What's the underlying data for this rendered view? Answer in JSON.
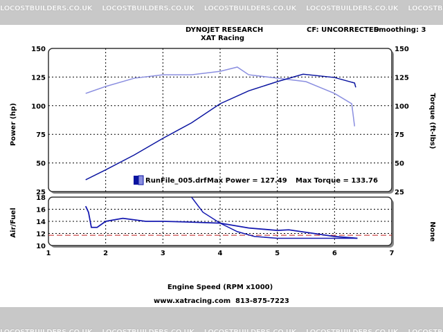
{
  "watermark": "LOCOSTBUILDERS.CO.UK",
  "header": {
    "title": "DYNOJET RESEARCH",
    "subtitle": "XAT Racing",
    "cf": "CF: UNCORRECTED",
    "smoothing": "Smoothing: 3"
  },
  "footer": {
    "website": "www.xatracing.com",
    "phone": "813-875-7223"
  },
  "colors": {
    "power": "#0a14a0",
    "torque": "#8a8ee0",
    "afr": "#1418b0",
    "reference": "#c02020"
  },
  "chart_data": [
    {
      "type": "line",
      "xlabel": "Engine Speed (RPM x1000)",
      "ylabel": "Power (hp)",
      "y2label": "Torque (ft-lbs)",
      "xlim": [
        1,
        7
      ],
      "ylim": [
        25,
        150
      ],
      "xticks": [
        "1",
        "2",
        "3",
        "4",
        "5",
        "6",
        "7"
      ],
      "yticks": [
        "25",
        "50",
        "75",
        "100",
        "125",
        "150"
      ],
      "grid": true,
      "legend": {
        "file": "RunFile_005.drf",
        "max_power": "Max Power = 127.49",
        "max_torque": "Max Torque = 133.76"
      },
      "series": [
        {
          "name": "Power",
          "x": [
            1.65,
            2.0,
            2.5,
            3.0,
            3.5,
            4.0,
            4.5,
            5.0,
            5.45,
            6.0,
            6.35,
            6.37
          ],
          "y": [
            35.3,
            44,
            57,
            71.5,
            85,
            101.7,
            113,
            121,
            127.5,
            124.6,
            119.8,
            116
          ]
        },
        {
          "name": "Torque",
          "x": [
            1.65,
            2.0,
            2.5,
            3.0,
            3.5,
            4.0,
            4.3,
            4.5,
            5.0,
            5.5,
            6.0,
            6.3,
            6.35
          ],
          "y": [
            110.7,
            116.8,
            124,
            127,
            127,
            130,
            133.7,
            127,
            124,
            121,
            110.7,
            101.7,
            82
          ]
        }
      ]
    },
    {
      "type": "line",
      "ylabel": "Air/Fuel",
      "y2label": "None",
      "xlim": [
        1,
        7
      ],
      "ylim": [
        10,
        18
      ],
      "yticks": [
        "10",
        "12",
        "14",
        "16",
        "18"
      ],
      "grid": true,
      "reference": 11.7,
      "series": [
        {
          "x": [
            1.65,
            1.7,
            1.75,
            1.85,
            2.0,
            2.3,
            2.7,
            3.0,
            3.4,
            4.0,
            4.5,
            5.0,
            5.2,
            6.0,
            6.4
          ],
          "y": [
            16.5,
            15.5,
            13.0,
            13.0,
            14.0,
            14.5,
            14.0,
            14.0,
            13.9,
            13.7,
            12.9,
            12.5,
            12.6,
            11.5,
            11.2
          ]
        },
        {
          "x": [
            3.5,
            3.7,
            4.0,
            4.3,
            4.6,
            5.0,
            6.4
          ],
          "y": [
            18,
            15.5,
            13.7,
            12.3,
            11.5,
            11.2,
            11.2
          ]
        }
      ]
    }
  ]
}
